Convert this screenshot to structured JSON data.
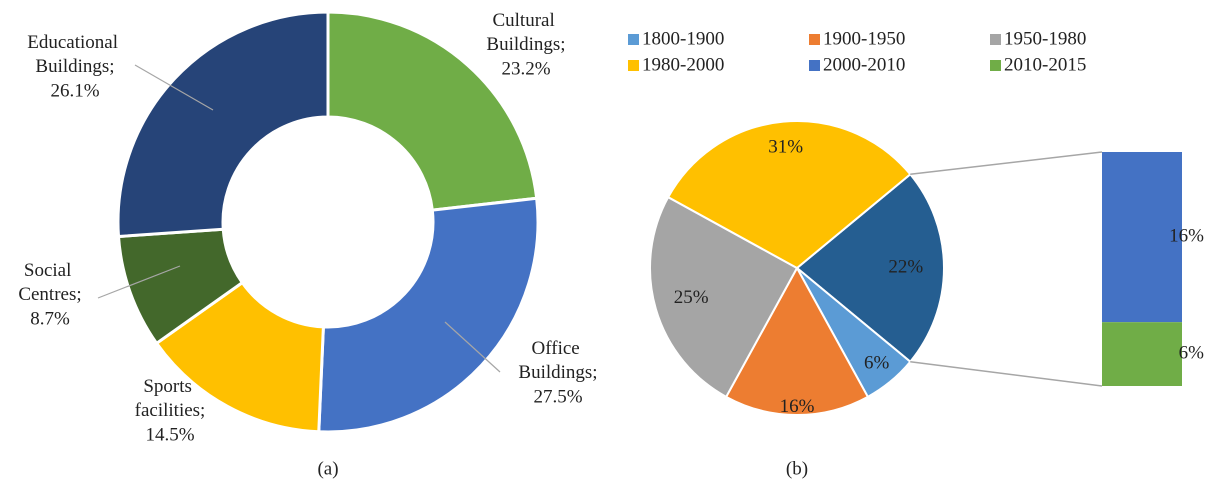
{
  "chart_data": [
    {
      "type": "donut",
      "categories": [
        "Cultural Buildings;",
        "Office Buildings;",
        "Sports facilities;",
        "Social Centres;",
        "Educational Buildings;"
      ],
      "values": [
        23.2,
        27.5,
        14.5,
        8.7,
        26.1
      ],
      "value_labels": [
        "23.2%",
        "27.5%",
        "14.5%",
        "8.7%",
        "26.1%"
      ],
      "colors": [
        "#70ad47",
        "#4472c4",
        "#ffc000",
        "#43682b",
        "#264478"
      ],
      "caption": "(a)"
    },
    {
      "type": "bar_of_pie",
      "pie": {
        "categories": [
          "1800-1900",
          "1900-1950",
          "1950-1980",
          "1980-2000"
        ],
        "values": [
          6,
          16,
          25,
          31
        ],
        "value_labels": [
          "6%",
          "16%",
          "25%",
          "31%"
        ],
        "colors": [
          "#5b9bd5",
          "#ed7d31",
          "#a5a5a5",
          "#ffc000"
        ]
      },
      "other": {
        "value": 22,
        "value_label": "22%",
        "color": "#255e91"
      },
      "bar": {
        "categories": [
          "2000-2010",
          "2010-2015"
        ],
        "values": [
          16,
          6
        ],
        "value_labels": [
          "16%",
          "6%"
        ],
        "colors": [
          "#4472c4",
          "#70ad47"
        ]
      },
      "caption": "(b)"
    }
  ]
}
